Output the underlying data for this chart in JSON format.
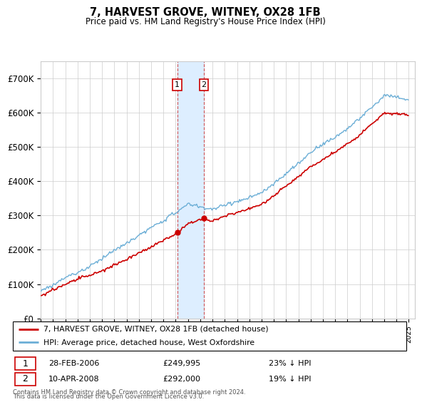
{
  "title": "7, HARVEST GROVE, WITNEY, OX28 1FB",
  "subtitle": "Price paid vs. HM Land Registry's House Price Index (HPI)",
  "hpi_label": "HPI: Average price, detached house, West Oxfordshire",
  "property_label": "7, HARVEST GROVE, WITNEY, OX28 1FB (detached house)",
  "footer_line1": "Contains HM Land Registry data © Crown copyright and database right 2024.",
  "footer_line2": "This data is licensed under the Open Government Licence v3.0.",
  "transaction1_date": "28-FEB-2006",
  "transaction1_price": "£249,995",
  "transaction1_hpi": "23% ↓ HPI",
  "transaction2_date": "10-APR-2008",
  "transaction2_price": "£292,000",
  "transaction2_hpi": "19% ↓ HPI",
  "hpi_color": "#6baed6",
  "property_color": "#cc0000",
  "highlight_color": "#ddeeff",
  "ylim": [
    0,
    750000
  ],
  "yticks": [
    0,
    100000,
    200000,
    300000,
    400000,
    500000,
    600000,
    700000
  ],
  "ytick_labels": [
    "£0",
    "£100K",
    "£200K",
    "£300K",
    "£400K",
    "£500K",
    "£600K",
    "£700K"
  ],
  "xstart_year": 1995,
  "xend_year": 2025
}
